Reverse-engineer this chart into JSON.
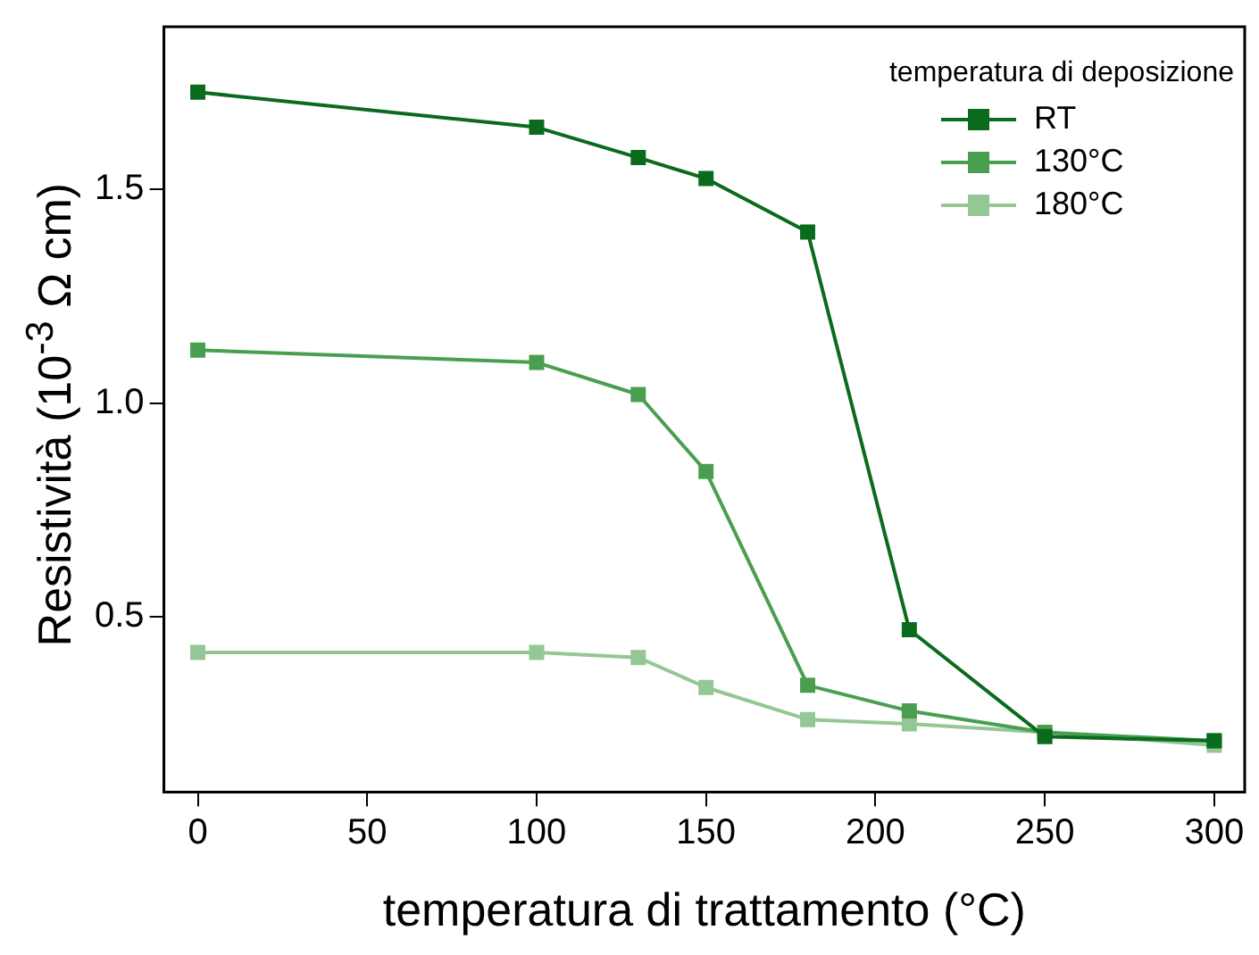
{
  "chart_data": {
    "type": "line",
    "xlabel": "temperatura di trattamento (°C)",
    "ylabel": "Resistività (10$^{-3}$ Ω cm)",
    "legend_title": "temperatura di deposizione",
    "x": [
      0,
      100,
      130,
      150,
      180,
      210,
      250,
      300
    ],
    "series": [
      {
        "name": "RT",
        "color": "#0b6b1d",
        "values": [
          1.727,
          1.645,
          1.574,
          1.525,
          1.4,
          0.47,
          0.22,
          0.21
        ]
      },
      {
        "name": "130°C",
        "color": "#4a9e50",
        "values": [
          1.124,
          1.095,
          1.02,
          0.84,
          0.34,
          0.28,
          0.23,
          0.21
        ]
      },
      {
        "name": "180°C",
        "color": "#93c795",
        "values": [
          0.417,
          0.417,
          0.405,
          0.335,
          0.26,
          0.25,
          0.23,
          0.2
        ]
      }
    ],
    "xlim": [
      -10,
      309
    ],
    "xticks": [
      0,
      50,
      100,
      150,
      200,
      250,
      300
    ],
    "ylim": [
      0.09,
      1.88
    ],
    "yticks": [
      {
        "value": 0.5,
        "label": "0.5"
      },
      {
        "value": 1,
        "label": "1.0"
      },
      {
        "value": 1.5,
        "label": "1.5"
      }
    ],
    "grid": false,
    "legend": "top right",
    "marker": "square",
    "line_style": "solid"
  }
}
